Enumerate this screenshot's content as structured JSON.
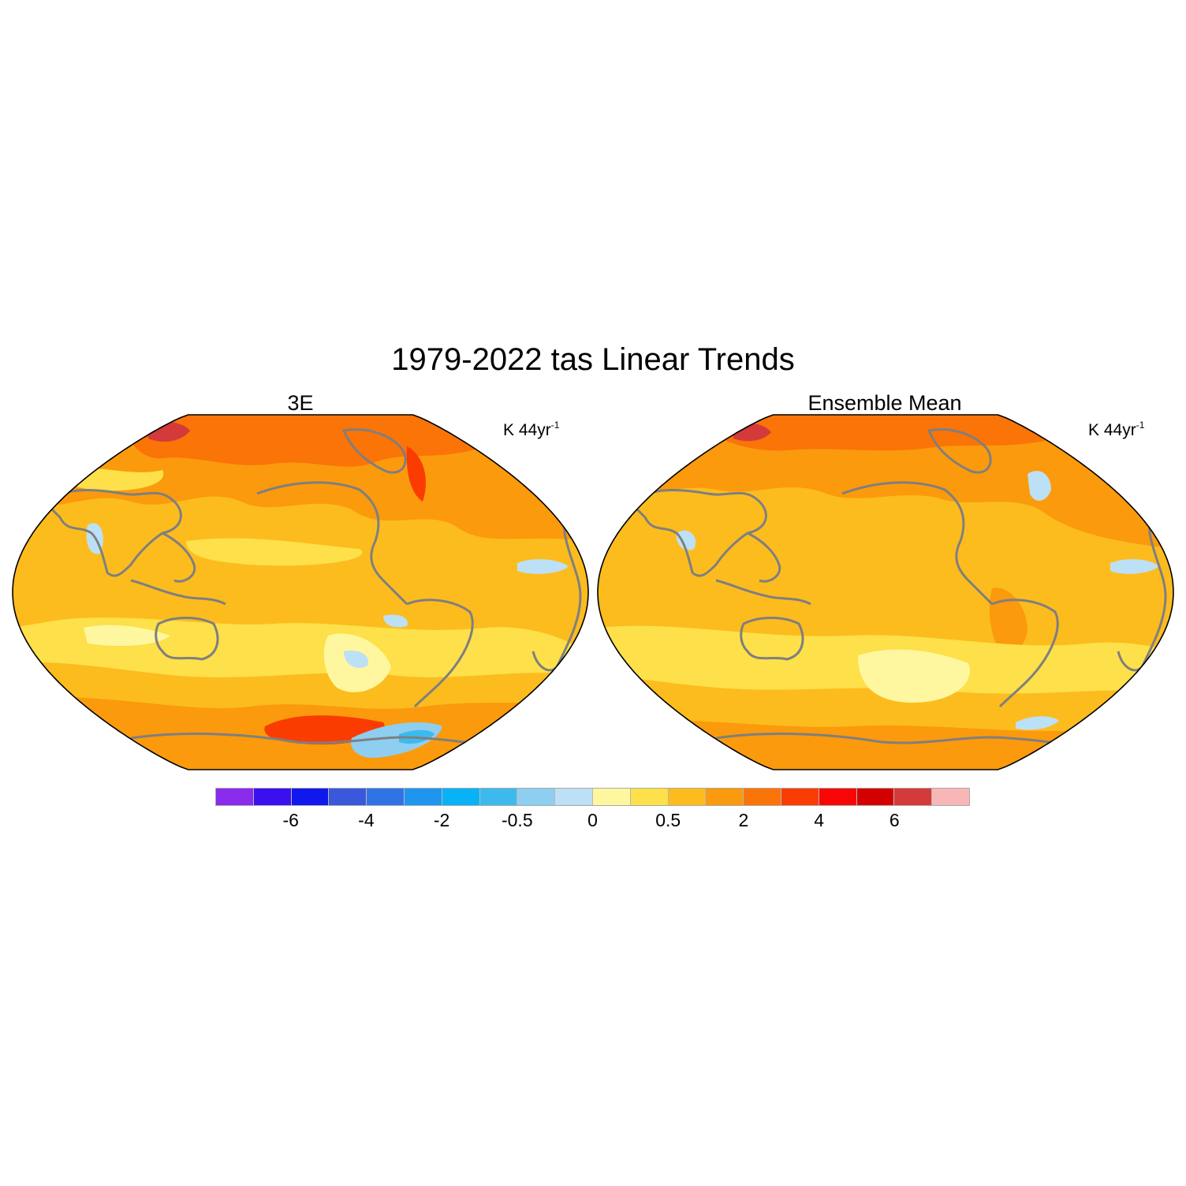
{
  "title": "1979-2022 tas Linear Trends",
  "panels": [
    {
      "title": "3E",
      "units": "K 44yr",
      "units_exp": "-1"
    },
    {
      "title": "Ensemble Mean",
      "units": "K 44yr",
      "units_exp": "-1"
    }
  ],
  "colorbar": {
    "colors": [
      "#8a2bee",
      "#3a10f0",
      "#1018ee",
      "#3a58dc",
      "#2f74e6",
      "#1e96f0",
      "#08b2f6",
      "#3cbaee",
      "#8ecef0",
      "#bce0f6",
      "#fff7a0",
      "#fde04a",
      "#fcbc1e",
      "#fb9a0c",
      "#fa7408",
      "#fa3c00",
      "#f80606",
      "#d40000",
      "#d43a3a",
      "#f8b6b6"
    ],
    "labels": [
      "-6",
      "-4",
      "-2",
      "-0.5",
      "0",
      "0.5",
      "2",
      "4",
      "6"
    ]
  },
  "map_colors": {
    "coast": "#7f7f7f",
    "frame": "#000000",
    "base": "#fcbc1e",
    "weak": "#fde04a",
    "very_weak": "#fff7a0",
    "moderate": "#fb9a0c",
    "strong": "#fa7408",
    "very_strong": "#fa3c00",
    "extreme": "#d43a3a",
    "cool": "#bce0f6",
    "colder": "#8ecef0",
    "coldest": "#3cbaee"
  }
}
